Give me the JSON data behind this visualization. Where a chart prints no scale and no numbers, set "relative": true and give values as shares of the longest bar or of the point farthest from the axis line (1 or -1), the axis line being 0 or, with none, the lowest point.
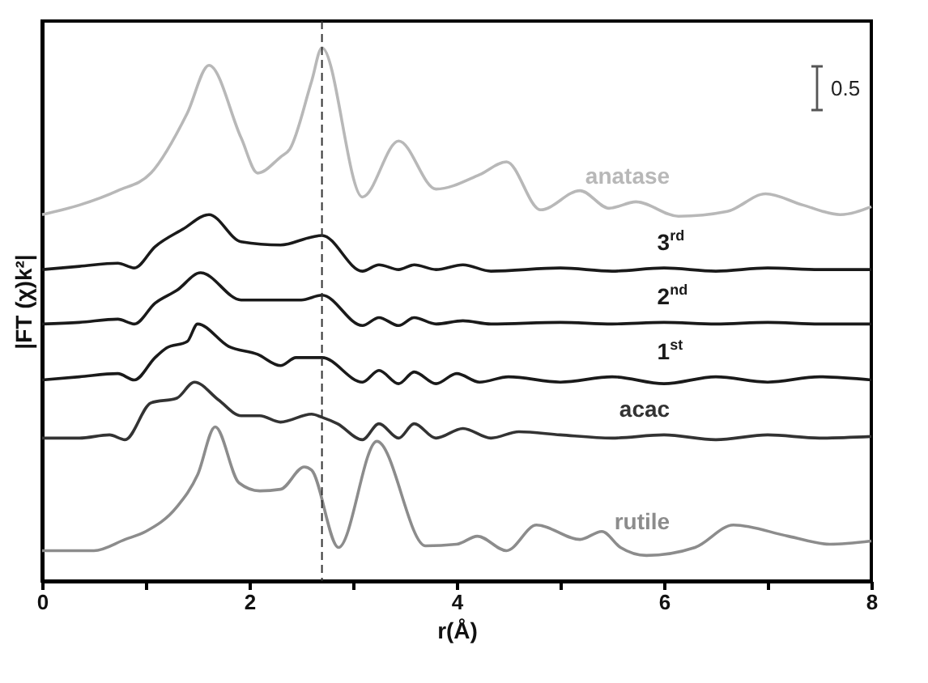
{
  "chart_data": {
    "type": "line",
    "relative": true,
    "xlabel": "r(Å)",
    "ylabel": "|FT (χ)k²|",
    "xlim": [
      0,
      8
    ],
    "xticks": [
      0,
      {
        "value": 1,
        "label": null
      },
      2,
      {
        "value": 3,
        "label": null
      },
      4,
      {
        "value": 5,
        "label": null
      },
      6,
      {
        "value": 7,
        "label": null
      },
      8
    ],
    "annotations": [
      "0.5"
    ],
    "ref_lines": [
      {
        "axis": "x",
        "value": 2.7,
        "color": "#333333",
        "line_style": "dashed"
      }
    ],
    "line_style": "solid",
    "series": [
      {
        "name": "anatase",
        "color": "#b8b8b8",
        "x": [
          0,
          0.36,
          0.73,
          1.05,
          1.4,
          1.61,
          1.92,
          2.08,
          2.3,
          2.39,
          2.6,
          2.7,
          3.09,
          3.44,
          3.8,
          4.22,
          4.48,
          4.81,
          5.19,
          5.47,
          5.73,
          6.14,
          6.61,
          6.98,
          7.34,
          7.7,
          8
        ],
        "values": [
          0.687,
          0.705,
          0.732,
          0.765,
          0.877,
          0.967,
          0.831,
          0.765,
          0.795,
          0.81,
          0.937,
          1.0,
          0.72,
          0.825,
          0.735,
          0.762,
          0.786,
          0.696,
          0.732,
          0.699,
          0.711,
          0.684,
          0.693,
          0.726,
          0.705,
          0.687,
          0.702
        ]
      },
      {
        "name": "3$^{rd}$",
        "color": "#1a1a1a",
        "x": [
          0,
          0.36,
          0.73,
          0.89,
          1.09,
          1.36,
          1.61,
          1.92,
          2.3,
          2.6,
          2.7,
          3.09,
          3.25,
          3.44,
          3.59,
          3.8,
          4.06,
          4.33,
          5,
          5.5,
          6,
          6.5,
          7,
          7.5,
          8
        ],
        "values": [
          0.584,
          0.59,
          0.596,
          0.587,
          0.627,
          0.66,
          0.687,
          0.636,
          0.63,
          0.645,
          0.648,
          0.581,
          0.593,
          0.584,
          0.593,
          0.584,
          0.593,
          0.581,
          0.587,
          0.581,
          0.587,
          0.581,
          0.587,
          0.584,
          0.584
        ]
      },
      {
        "name": "2$^{nd}$",
        "color": "#1a1a1a",
        "x": [
          0,
          0.36,
          0.73,
          0.89,
          1.09,
          1.3,
          1.53,
          1.92,
          2.5,
          2.7,
          3.09,
          3.25,
          3.44,
          3.59,
          3.8,
          4.06,
          4.33,
          5,
          5.5,
          6,
          6.5,
          7,
          7.5,
          8
        ],
        "values": [
          0.482,
          0.485,
          0.491,
          0.482,
          0.521,
          0.545,
          0.578,
          0.527,
          0.527,
          0.536,
          0.479,
          0.494,
          0.479,
          0.494,
          0.482,
          0.488,
          0.482,
          0.485,
          0.482,
          0.485,
          0.482,
          0.485,
          0.482,
          0.482
        ]
      },
      {
        "name": "1$^{st}$",
        "color": "#1a1a1a",
        "x": [
          0,
          0.36,
          0.73,
          0.89,
          1.09,
          1.2,
          1.4,
          1.5,
          1.8,
          2.08,
          2.3,
          2.45,
          2.7,
          3.09,
          3.25,
          3.44,
          3.59,
          3.8,
          4.0,
          4.22,
          4.5,
          5,
          5.5,
          6,
          6.5,
          7,
          7.5,
          8
        ],
        "values": [
          0.377,
          0.383,
          0.389,
          0.377,
          0.419,
          0.437,
          0.449,
          0.482,
          0.44,
          0.425,
          0.404,
          0.419,
          0.419,
          0.373,
          0.395,
          0.37,
          0.392,
          0.37,
          0.389,
          0.373,
          0.383,
          0.373,
          0.383,
          0.37,
          0.383,
          0.373,
          0.383,
          0.377
        ]
      },
      {
        "name": "acac",
        "color": "#333333",
        "x": [
          0,
          0.36,
          0.65,
          0.8,
          1.05,
          1.3,
          1.47,
          1.7,
          1.92,
          2.1,
          2.3,
          2.6,
          2.7,
          2.85,
          3.09,
          3.25,
          3.44,
          3.59,
          3.8,
          4.06,
          4.33,
          4.6,
          5,
          5.5,
          6,
          6.5,
          7,
          7.5,
          8
        ],
        "values": [
          0.268,
          0.268,
          0.274,
          0.265,
          0.334,
          0.343,
          0.373,
          0.34,
          0.31,
          0.31,
          0.298,
          0.313,
          0.307,
          0.295,
          0.265,
          0.295,
          0.268,
          0.295,
          0.268,
          0.286,
          0.268,
          0.28,
          0.274,
          0.268,
          0.274,
          0.265,
          0.274,
          0.268,
          0.271
        ]
      },
      {
        "name": "rutile",
        "color": "#8c8c8c",
        "x": [
          0,
          0.5,
          0.8,
          1.0,
          1.3,
          1.5,
          1.67,
          1.9,
          2.1,
          2.3,
          2.53,
          2.6,
          2.86,
          3.23,
          3.7,
          4.0,
          4.2,
          4.48,
          4.77,
          5.19,
          5.4,
          5.58,
          5.83,
          6.3,
          6.67,
          7.2,
          7.6,
          8
        ],
        "values": [
          0.057,
          0.057,
          0.078,
          0.093,
          0.139,
          0.199,
          0.289,
          0.184,
          0.169,
          0.172,
          0.214,
          0.208,
          0.063,
          0.262,
          0.066,
          0.069,
          0.084,
          0.057,
          0.105,
          0.078,
          0.093,
          0.063,
          0.048,
          0.063,
          0.105,
          0.084,
          0.069,
          0.075
        ]
      }
    ]
  }
}
